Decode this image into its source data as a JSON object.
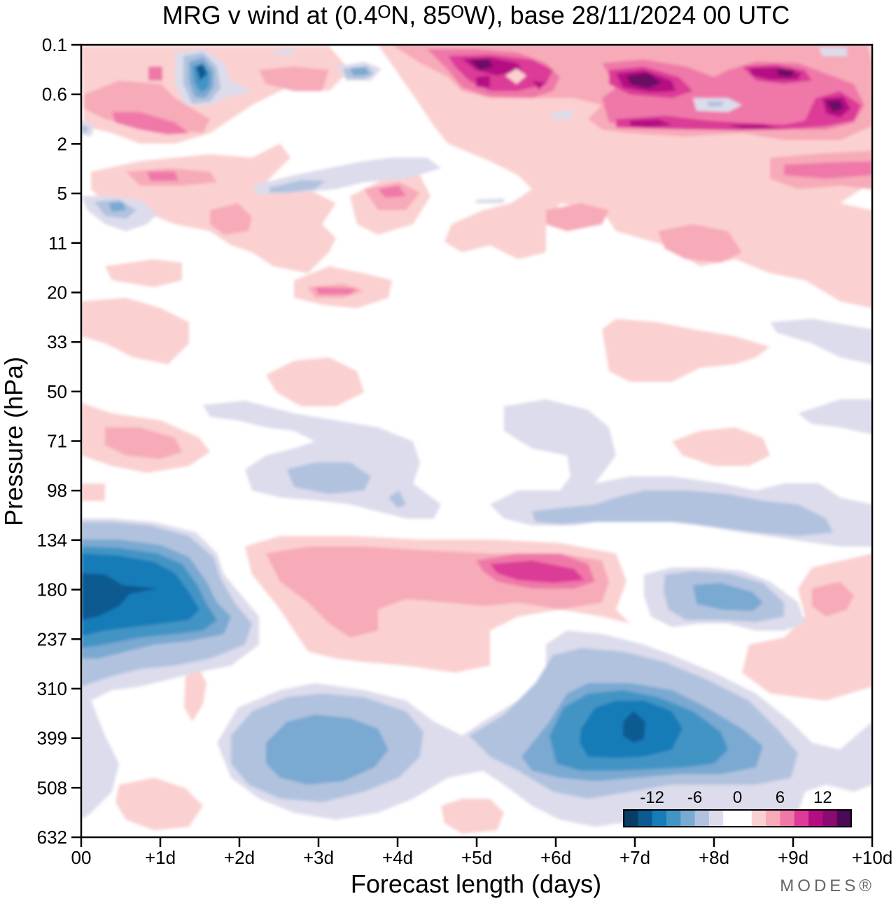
{
  "chart_data": {
    "type": "heatmap",
    "title": "MRG v wind at (0.4ᴼN, 85ᴼW),  base 28/11/2024  00 UTC",
    "xlabel": "Forecast length (days)",
    "ylabel": "Pressure (hPa)",
    "x_ticks": [
      "00",
      "+1d",
      "+2d",
      "+3d",
      "+4d",
      "+5d",
      "+6d",
      "+7d",
      "+8d",
      "+9d",
      "+10d"
    ],
    "y_ticks": [
      "0.1",
      "0.6",
      "2",
      "5",
      "11",
      "20",
      "33",
      "50",
      "71",
      "98",
      "134",
      "180",
      "237",
      "310",
      "399",
      "508",
      "632"
    ],
    "xlim": [
      0,
      10
    ],
    "colorbar": {
      "labels": [
        "-12",
        "-6",
        "0",
        "6",
        "12"
      ],
      "colors": [
        "#0a3d63",
        "#0b5a91",
        "#157cb8",
        "#4394c4",
        "#7aa9d1",
        "#b1c2de",
        "#dcdcec",
        "#ffffff",
        "#ffffff",
        "#fbd0d0",
        "#f7aab8",
        "#ef78a8",
        "#dc3b97",
        "#b50c84",
        "#8b0b71",
        "#4a0a55"
      ]
    },
    "features": [
      {
        "x": 0.5,
        "y": "180",
        "value": -14
      },
      {
        "x": 1.5,
        "y": "0.6",
        "value": -9
      },
      {
        "x": 3.0,
        "y": "399",
        "value": -8
      },
      {
        "x": 7.0,
        "y": "399",
        "value": -14
      },
      {
        "x": 8.5,
        "y": "180",
        "value": -7
      },
      {
        "x": 5.5,
        "y": "180",
        "value": 9
      },
      {
        "x": 5.0,
        "y": "0.1",
        "value": 13
      },
      {
        "x": 7.0,
        "y": "0.6",
        "value": 15
      },
      {
        "x": 9.5,
        "y": "0.6",
        "value": 12
      }
    ],
    "brand": "MODES®"
  }
}
